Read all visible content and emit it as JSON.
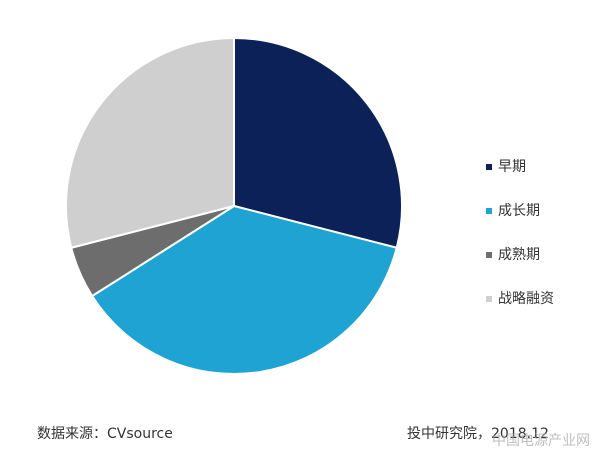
{
  "chart_data": {
    "type": "pie",
    "categories": [
      "早期",
      "成长期",
      "成熟期",
      "战略融资"
    ],
    "values": [
      29,
      37,
      5,
      29
    ],
    "colors": [
      "#0b2158",
      "#1ea3d2",
      "#6d6d6d",
      "#cfcfcf"
    ],
    "legend": "right"
  },
  "footer": {
    "source": "数据来源：CVsource",
    "credit": "投中研究院，2018.12",
    "watermark": "中国电源产业网"
  }
}
